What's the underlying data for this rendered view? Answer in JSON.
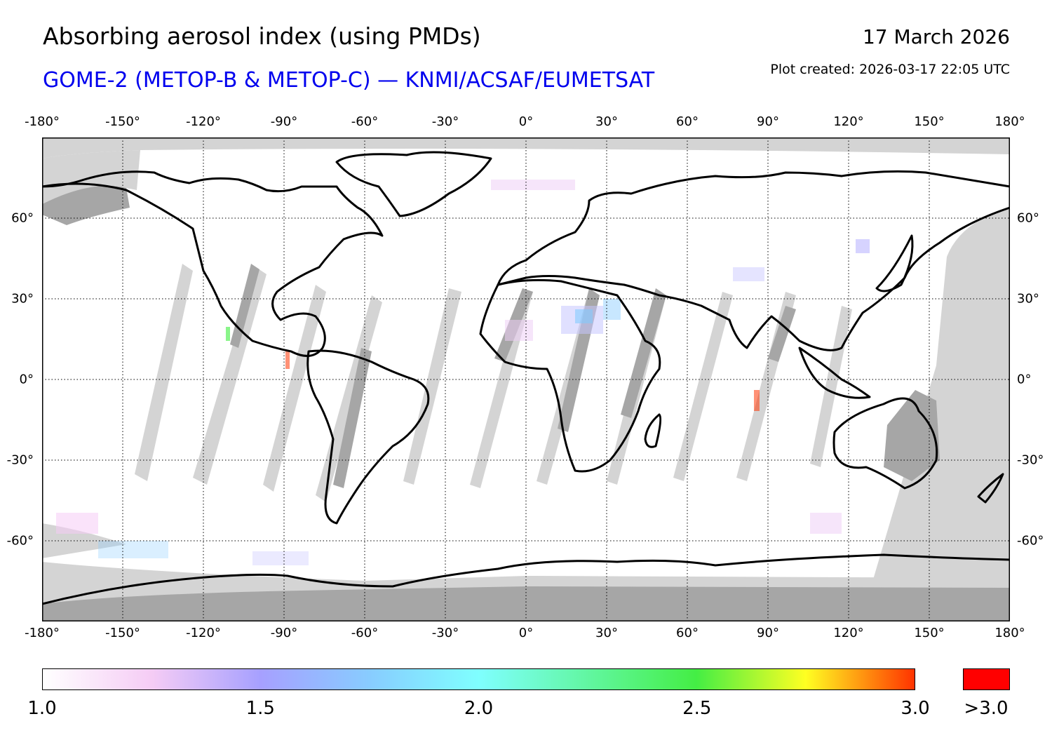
{
  "title": "Absorbing aerosol index (using PMDs)",
  "subtitle": "GOME-2 (METOP-B & METOP-C) — KNMI/ACSAF/EUMETSAT",
  "date": "17 March 2026",
  "plot_created": "Plot created: 2026-03-17 22:05 UTC",
  "colors": {
    "subtitle": "#0000ee",
    "no_data": "#d4d4d4",
    "land_no_data": "#a6a6a6",
    "coast": "#000000",
    "over_range": "#ff0000"
  },
  "map": {
    "projection": "equirectangular",
    "lon_range": [
      -180,
      180
    ],
    "lat_range": [
      -90,
      90
    ],
    "grid": "dotted",
    "lon_ticks": [
      {
        "value": -180,
        "label": "-180°"
      },
      {
        "value": -150,
        "label": "-150°"
      },
      {
        "value": -120,
        "label": "-120°"
      },
      {
        "value": -90,
        "label": "-90°"
      },
      {
        "value": -60,
        "label": "-60°"
      },
      {
        "value": -30,
        "label": "-30°"
      },
      {
        "value": 0,
        "label": "0°"
      },
      {
        "value": 30,
        "label": "30°"
      },
      {
        "value": 60,
        "label": "60°"
      },
      {
        "value": 90,
        "label": "90°"
      },
      {
        "value": 120,
        "label": "120°"
      },
      {
        "value": 150,
        "label": "150°"
      },
      {
        "value": 180,
        "label": "180°"
      }
    ],
    "lat_ticks": [
      {
        "value": 60,
        "label": "60°"
      },
      {
        "value": 30,
        "label": "30°"
      },
      {
        "value": 0,
        "label": "0°"
      },
      {
        "value": -30,
        "label": "-30°"
      },
      {
        "value": -60,
        "label": "-60°"
      }
    ]
  },
  "colorbar": {
    "range": [
      1.0,
      3.0
    ],
    "ticks": [
      {
        "value": 1.0,
        "label": "1.0"
      },
      {
        "value": 1.5,
        "label": "1.5"
      },
      {
        "value": 2.0,
        "label": "2.0"
      },
      {
        "value": 2.5,
        "label": "2.5"
      },
      {
        "value": 3.0,
        "label": "3.0"
      }
    ],
    "stops": [
      {
        "value": 1.0,
        "color": "#ffffff"
      },
      {
        "value": 1.25,
        "color": "#f5ccf5"
      },
      {
        "value": 1.5,
        "color": "#a6a0ff"
      },
      {
        "value": 1.75,
        "color": "#88ccff"
      },
      {
        "value": 2.0,
        "color": "#7fffff"
      },
      {
        "value": 2.5,
        "color": "#44ee44"
      },
      {
        "value": 2.75,
        "color": "#ffff22"
      },
      {
        "value": 3.0,
        "color": "#ff3300"
      }
    ],
    "over_label": ">3.0"
  }
}
